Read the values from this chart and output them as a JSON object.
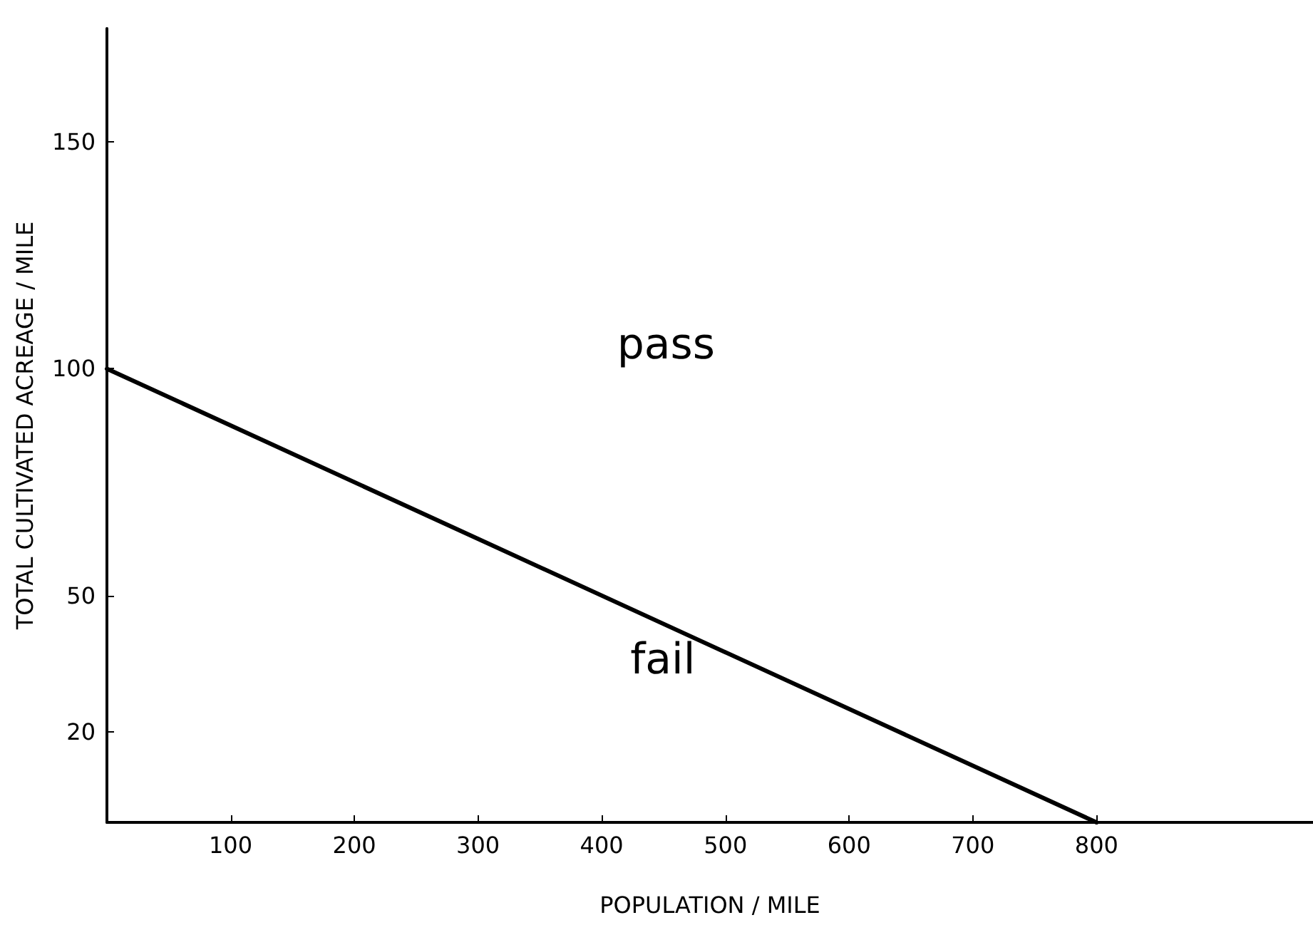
{
  "chart_data": {
    "type": "line",
    "xlabel": "POPULATION / MILE",
    "ylabel": "TOTAL CULTIVATED ACREAGE / MILE",
    "series": [
      {
        "color": "#000000",
        "x": [
          0,
          800
        ],
        "values": [
          100,
          0
        ]
      }
    ],
    "xlim": [
      0,
      975
    ],
    "xticks": [
      100,
      200,
      300,
      400,
      500,
      600,
      700,
      800
    ],
    "ylim": [
      0,
      175
    ],
    "yticks": [
      20,
      50,
      100,
      150
    ],
    "grid": false,
    "marker": "none",
    "line_style": "solid",
    "annotations": [
      "pass",
      "fail"
    ]
  }
}
